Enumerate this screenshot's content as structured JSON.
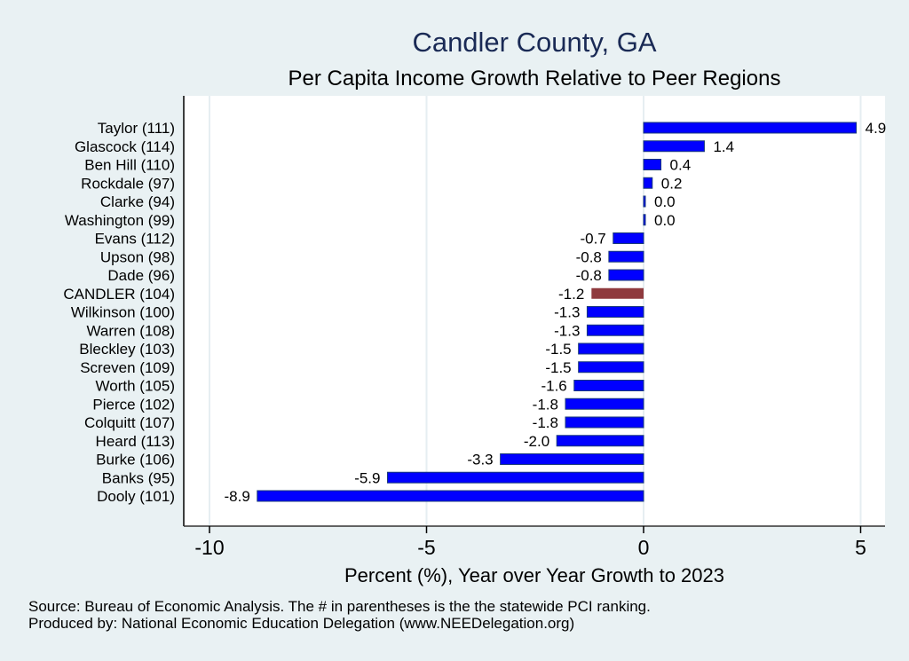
{
  "chart_data": {
    "type": "bar",
    "orientation": "horizontal",
    "title": "Candler County, GA",
    "subtitle": "Per Capita Income Growth Relative to Peer Regions",
    "xlabel": "Percent (%), Year over Year Growth to 2023",
    "ylabel": "",
    "xlim": [
      -10.5,
      5.5
    ],
    "xticks": [
      -10,
      -5,
      0,
      5
    ],
    "xtick_labels": [
      "-10",
      "-5",
      "0",
      "5"
    ],
    "grid": true,
    "categories": [
      "Taylor (111)",
      "Glascock (114)",
      "Ben Hill (110)",
      "Rockdale (97)",
      "Clarke (94)",
      "Washington (99)",
      "Evans (112)",
      "Upson (98)",
      "Dade (96)",
      "CANDLER (104)",
      "Wilkinson (100)",
      "Warren (108)",
      "Bleckley (103)",
      "Screven (109)",
      "Worth (105)",
      "Pierce (102)",
      "Colquitt (107)",
      "Heard (113)",
      "Burke (106)",
      "Banks (95)",
      "Dooly (101)"
    ],
    "values": [
      4.9,
      1.4,
      0.4,
      0.2,
      0.0,
      0.0,
      -0.7,
      -0.8,
      -0.8,
      -1.2,
      -1.3,
      -1.3,
      -1.5,
      -1.5,
      -1.6,
      -1.8,
      -1.8,
      -2.0,
      -3.3,
      -5.9,
      -8.9
    ],
    "labels": [
      "4.9",
      "1.4",
      "0.4",
      "0.2",
      "0.0",
      "0.0",
      "-0.7",
      "-0.8",
      "-0.8",
      "-1.2",
      "-1.3",
      "-1.3",
      "-1.5",
      "-1.5",
      "-1.6",
      "-1.8",
      "-1.8",
      "-2.0",
      "-3.3",
      "-5.9",
      "-8.9"
    ],
    "highlight": "CANDLER (104)",
    "colors": {
      "bar": "#0000ff",
      "bar_edge": "#1a3a7a",
      "highlight": "#8f3a3e",
      "plot_bg": "#ffffff",
      "page_bg": "#e9f1f3",
      "grid": "#e6eef2"
    }
  },
  "notes": {
    "source": "Source: Bureau of Economic Analysis. The # in parentheses is the the statewide PCI ranking.",
    "producer": "Produced by: National Economic Education Delegation (www.NEEDelegation.org)"
  }
}
